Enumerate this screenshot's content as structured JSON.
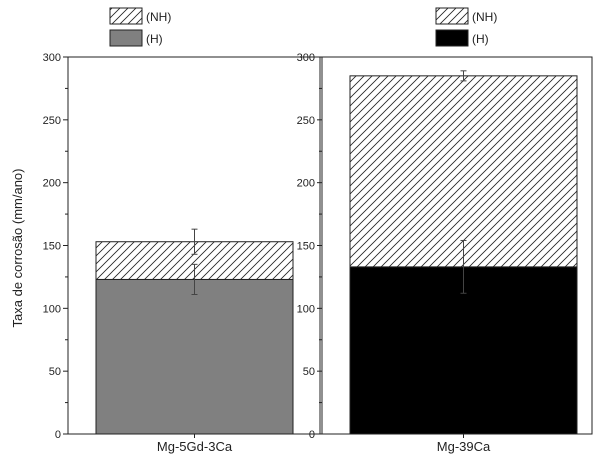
{
  "chart_data": {
    "type": "bar",
    "stacked": true,
    "ylabel": "Taxa de corrosão (mm/ano)",
    "ylim": [
      0,
      300
    ],
    "yticks": [
      0,
      50,
      100,
      150,
      200,
      250,
      300
    ],
    "grid": false,
    "legend_placement": "top",
    "panels": [
      {
        "category": "Mg-5Gd-3Ca",
        "legend": [
          {
            "label": "(NH)",
            "fill": "hatch"
          },
          {
            "label": "(H)",
            "fill": "#808080"
          }
        ],
        "segments": [
          {
            "series": "(H)",
            "value": 123,
            "error": 12,
            "fill": "#808080"
          },
          {
            "series": "(NH)",
            "value": 30,
            "error": 10,
            "fill": "hatch"
          }
        ]
      },
      {
        "category": "Mg-39Ca",
        "legend": [
          {
            "label": "(NH)",
            "fill": "hatch"
          },
          {
            "label": "(H)",
            "fill": "#000000"
          }
        ],
        "segments": [
          {
            "series": "(H)",
            "value": 133,
            "error": 21,
            "fill": "#000000"
          },
          {
            "series": "(NH)",
            "value": 152,
            "error": 4,
            "fill": "hatch"
          }
        ]
      }
    ]
  }
}
